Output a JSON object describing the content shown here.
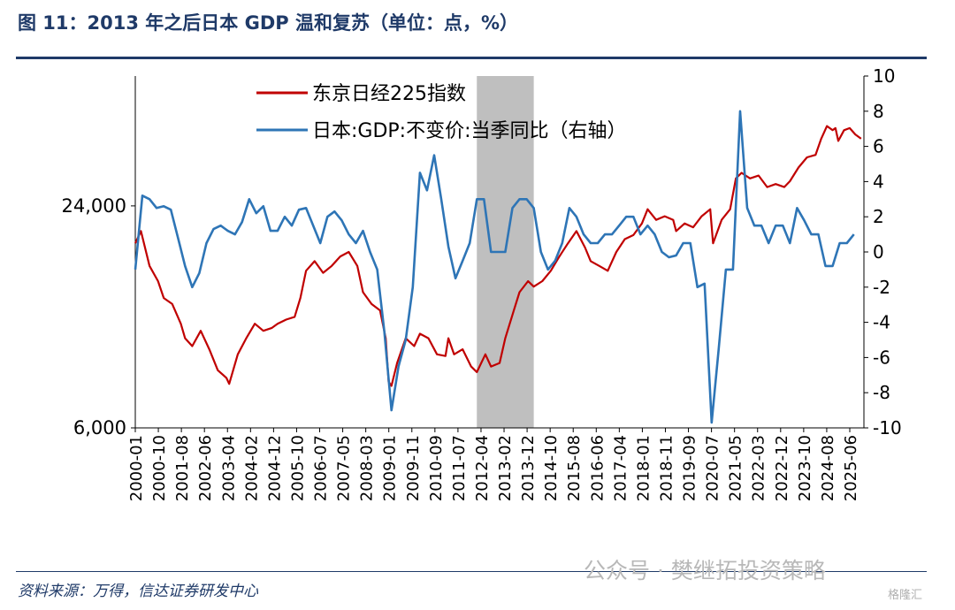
{
  "title": "图 11：2013 年之后日本 GDP 温和复苏（单位：点，%）",
  "source": "资料来源：万得，信达证券研发中心",
  "watermark": "公众号 · 樊继拓投资策略",
  "watermark_small": "格隆汇",
  "colors": {
    "nikkei": "#c00000",
    "gdp": "#2e75b6",
    "shade": "#bfbfbf",
    "title": "#1f3a68"
  },
  "chart_data": {
    "type": "line",
    "title": "",
    "y_left": {
      "scale": "log",
      "ticks": [
        6000,
        24000
      ],
      "tick_labels": [
        "6,000",
        "24,000"
      ],
      "range": [
        6000,
        54000
      ]
    },
    "y_right": {
      "scale": "linear",
      "range": [
        -10,
        10
      ],
      "ticks": [
        -10,
        -8,
        -6,
        -4,
        -2,
        0,
        2,
        4,
        6,
        8,
        10
      ]
    },
    "x_tick_labels": [
      "2000-01",
      "2000-10",
      "2001-08",
      "2002-06",
      "2003-04",
      "2004-02",
      "2004-12",
      "2005-10",
      "2006-07",
      "2007-05",
      "2008-03",
      "2009-01",
      "2009-11",
      "2010-09",
      "2011-07",
      "2012-04",
      "2013-02",
      "2013-12",
      "2014-10",
      "2015-08",
      "2016-06",
      "2017-04",
      "2018-01",
      "2018-11",
      "2019-09",
      "2020-07",
      "2021-05",
      "2022-03",
      "2022-12",
      "2023-10",
      "2024-08",
      "2025-06"
    ],
    "x_range": [
      2000.0,
      2025.6
    ],
    "shaded_range": [
      2012.0,
      2014.0
    ],
    "legend_position": "top-left",
    "series": [
      {
        "name": "东京日经225指数",
        "axis": "left",
        "x": [
          2000.0,
          2000.2,
          2000.5,
          2000.8,
          2001.0,
          2001.3,
          2001.6,
          2001.75,
          2002.0,
          2002.3,
          2002.6,
          2002.9,
          2003.2,
          2003.3,
          2003.6,
          2003.9,
          2004.2,
          2004.5,
          2004.8,
          2005.0,
          2005.3,
          2005.6,
          2005.8,
          2006.0,
          2006.3,
          2006.6,
          2006.9,
          2007.2,
          2007.5,
          2007.8,
          2008.0,
          2008.3,
          2008.6,
          2008.8,
          2008.9,
          2009.0,
          2009.2,
          2009.5,
          2009.8,
          2010.0,
          2010.3,
          2010.6,
          2010.9,
          2011.0,
          2011.2,
          2011.5,
          2011.8,
          2012.0,
          2012.3,
          2012.5,
          2012.8,
          2013.0,
          2013.3,
          2013.5,
          2013.8,
          2014.0,
          2014.3,
          2014.6,
          2014.9,
          2015.2,
          2015.5,
          2015.8,
          2016.0,
          2016.3,
          2016.6,
          2016.9,
          2017.2,
          2017.5,
          2017.8,
          2018.0,
          2018.3,
          2018.6,
          2018.9,
          2019.0,
          2019.3,
          2019.6,
          2019.9,
          2020.2,
          2020.3,
          2020.6,
          2020.9,
          2021.1,
          2021.3,
          2021.6,
          2021.9,
          2022.2,
          2022.5,
          2022.8,
          2023.0,
          2023.3,
          2023.6,
          2023.9,
          2024.1,
          2024.3,
          2024.5,
          2024.6,
          2024.7,
          2024.9,
          2025.1,
          2025.3,
          2025.5
        ],
        "values": [
          19000,
          20500,
          16500,
          15000,
          13500,
          13000,
          11500,
          10500,
          10000,
          11000,
          9800,
          8600,
          8200,
          7900,
          9500,
          10500,
          11500,
          11000,
          11200,
          11500,
          11800,
          12000,
          13500,
          16000,
          17000,
          15800,
          16500,
          17500,
          18000,
          16500,
          14000,
          13000,
          12500,
          10500,
          8000,
          7800,
          9000,
          10500,
          10000,
          10800,
          10500,
          9500,
          9400,
          10500,
          9500,
          9800,
          8800,
          8500,
          9500,
          8800,
          9000,
          10500,
          12500,
          14000,
          15000,
          14500,
          15000,
          16000,
          17500,
          19000,
          20500,
          18500,
          17000,
          16500,
          16000,
          18000,
          19500,
          20000,
          21500,
          23500,
          22000,
          22500,
          22000,
          20500,
          21500,
          21000,
          22500,
          23500,
          19000,
          22000,
          23500,
          28500,
          29500,
          28500,
          29000,
          27000,
          27500,
          27000,
          28000,
          30500,
          32500,
          33000,
          36500,
          39500,
          38500,
          39000,
          36000,
          38500,
          39000,
          37500,
          36500
        ]
      },
      {
        "name": "日本:GDP:不变价:当季同比（右轴）",
        "axis": "right",
        "x": [
          2000.0,
          2000.25,
          2000.5,
          2000.75,
          2001.0,
          2001.25,
          2001.5,
          2001.75,
          2002.0,
          2002.25,
          2002.5,
          2002.75,
          2003.0,
          2003.25,
          2003.5,
          2003.75,
          2004.0,
          2004.25,
          2004.5,
          2004.75,
          2005.0,
          2005.25,
          2005.5,
          2005.75,
          2006.0,
          2006.25,
          2006.5,
          2006.75,
          2007.0,
          2007.25,
          2007.5,
          2007.75,
          2008.0,
          2008.25,
          2008.5,
          2008.75,
          2009.0,
          2009.25,
          2009.5,
          2009.75,
          2010.0,
          2010.25,
          2010.5,
          2010.75,
          2011.0,
          2011.25,
          2011.5,
          2011.75,
          2012.0,
          2012.25,
          2012.5,
          2012.75,
          2013.0,
          2013.25,
          2013.5,
          2013.75,
          2014.0,
          2014.25,
          2014.5,
          2014.75,
          2015.0,
          2015.25,
          2015.5,
          2015.75,
          2016.0,
          2016.25,
          2016.5,
          2016.75,
          2017.0,
          2017.25,
          2017.5,
          2017.75,
          2018.0,
          2018.25,
          2018.5,
          2018.75,
          2019.0,
          2019.25,
          2019.5,
          2019.75,
          2020.0,
          2020.25,
          2020.5,
          2020.75,
          2021.0,
          2021.25,
          2021.5,
          2021.75,
          2022.0,
          2022.25,
          2022.5,
          2022.75,
          2023.0,
          2023.25,
          2023.5,
          2023.75,
          2024.0,
          2024.25,
          2024.5,
          2024.75,
          2025.0,
          2025.25
        ],
        "values": [
          -1.0,
          3.2,
          3.0,
          2.5,
          2.6,
          2.4,
          0.8,
          -0.8,
          -2.0,
          -1.2,
          0.5,
          1.3,
          1.5,
          1.2,
          1.0,
          1.7,
          3.0,
          2.2,
          2.6,
          1.2,
          1.2,
          2.0,
          1.5,
          2.4,
          2.5,
          1.5,
          0.5,
          2.0,
          2.3,
          1.8,
          1.0,
          0.5,
          1.2,
          0.0,
          -1.0,
          -4.5,
          -9.0,
          -6.5,
          -5.0,
          -2.0,
          4.5,
          3.5,
          5.5,
          3.0,
          0.3,
          -1.5,
          -0.5,
          0.5,
          3.0,
          3.0,
          0.0,
          0.0,
          0.0,
          2.5,
          3.0,
          3.0,
          2.5,
          0.0,
          -1.0,
          -0.5,
          0.5,
          2.5,
          2.0,
          1.0,
          0.5,
          0.5,
          1.0,
          1.0,
          1.5,
          2.0,
          2.0,
          1.0,
          1.5,
          1.0,
          0.0,
          -0.3,
          -0.2,
          0.5,
          0.5,
          -2.0,
          -1.8,
          -9.7,
          -5.5,
          -1.0,
          -1.0,
          8.0,
          2.5,
          1.5,
          1.5,
          0.5,
          1.5,
          1.5,
          0.5,
          2.5,
          1.8,
          1.0,
          1.0,
          -0.8,
          -0.8,
          0.5,
          0.5,
          1.0
        ]
      }
    ]
  }
}
